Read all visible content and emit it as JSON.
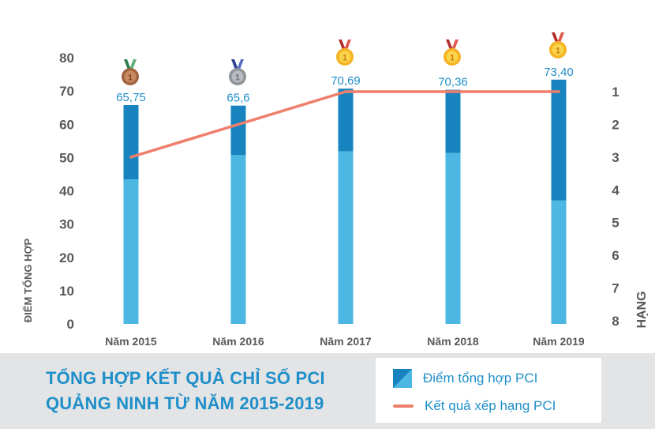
{
  "chart_data": {
    "type": "bar",
    "categories": [
      "Năm 2015",
      "Năm 2016",
      "Năm 2017",
      "Năm 2018",
      "Năm 2019"
    ],
    "series": [
      {
        "name": "Điểm tổng hợp PCI",
        "type": "bar",
        "values": [
          65.75,
          65.6,
          70.69,
          70.36,
          73.4
        ],
        "labels": [
          "65,75",
          "65,6",
          "70,69",
          "70,36",
          "73,40"
        ]
      },
      {
        "name": "Kết quả xếp hạng PCI",
        "type": "line",
        "axis": "right",
        "values": [
          3,
          2,
          1,
          1,
          1
        ]
      }
    ],
    "ylabel": "ĐIỂM TỔNG HỢP",
    "y2label": "HẠNG",
    "ylim": [
      0,
      80
    ],
    "yticks": [
      "0",
      "10",
      "20",
      "30",
      "40",
      "50",
      "60",
      "70",
      "80"
    ],
    "y2lim": [
      1,
      8
    ],
    "y2ticks": [
      "1",
      "2",
      "3",
      "4",
      "5",
      "6",
      "7",
      "8"
    ],
    "y2_inverted": true,
    "medals": [
      "bronze",
      "silver",
      "gold",
      "gold",
      "gold"
    ],
    "grid": false,
    "colors": {
      "bar_dark": "#1784bf",
      "bar_light": "#4cb7e3",
      "line": "#ef7f6c",
      "axis_text": "#58595b",
      "label_text": "#1f8fc9"
    }
  },
  "footer": {
    "title_line1": "TỔNG HỢP KẾT QUẢ CHỈ SỐ PCI",
    "title_line2": "QUẢNG NINH TỪ NĂM 2015-2019"
  },
  "legend": {
    "bar_label": "Điểm tổng hợp PCI",
    "line_label": "Kết quả xếp hạng PCI"
  }
}
